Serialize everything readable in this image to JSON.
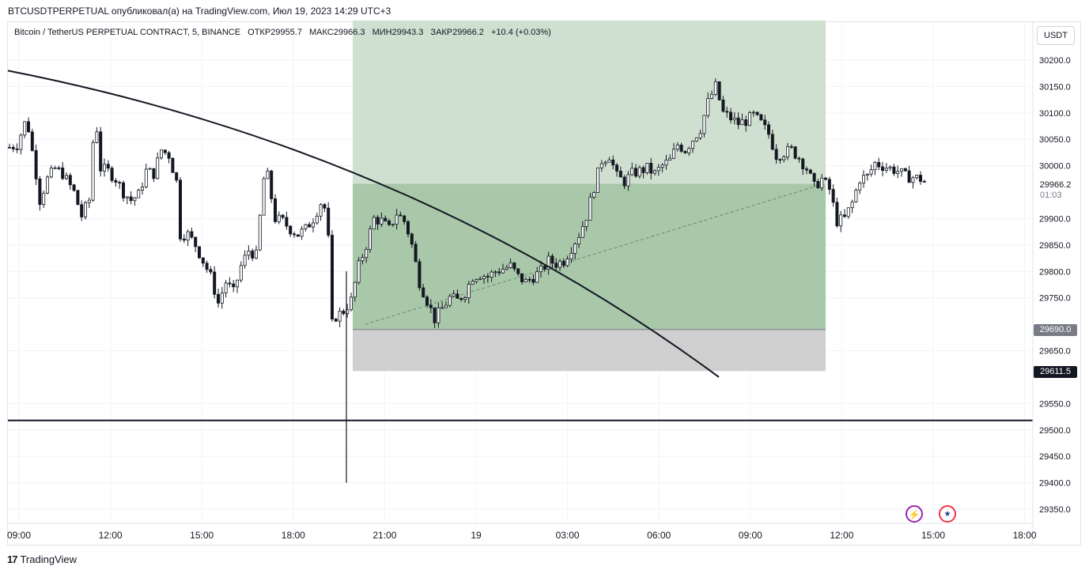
{
  "header": {
    "title": "BTCUSDTPERPETUAL опубликовал(а) на TradingView.com, Июл 19, 2023 14:29 UTC+3"
  },
  "legend": {
    "symbol": "Bitcoin / TetherUS PERPETUAL CONTRACT, 5, BINANCE",
    "open_label": "ОТКР",
    "open": "29955.7",
    "high_label": "МАКС",
    "high": "29966.3",
    "low_label": "МИН",
    "low": "29943.3",
    "close_label": "ЗАКР",
    "close": "29966.2",
    "change": "+10.4 (+0.03%)"
  },
  "currency": "USDT",
  "price_labels": {
    "last": "29966.2",
    "countdown": "01:03",
    "entry": "29690.0",
    "stop": "29611.5"
  },
  "footer": {
    "logo": "TradingView"
  },
  "icons": {
    "bolt": "lightning-icon",
    "flag": "us-flag-icon"
  },
  "colors": {
    "profit_zone": "#a5c8a5",
    "stop_zone": "#c8c8c8",
    "last_price_bg": "#787b86",
    "entry_bg": "#787b86",
    "stop_bg": "#131722",
    "candles": "#131722"
  },
  "chart_data": {
    "type": "candlestick",
    "y_ticks": [
      "30200.0",
      "30150.0",
      "30100.0",
      "30050.0",
      "30000.0",
      "29900.0",
      "29850.0",
      "29800.0",
      "29750.0",
      "29650.0",
      "29550.0",
      "29500.0",
      "29450.0",
      "29400.0",
      "29350.0"
    ],
    "x_ticks": [
      "09:00",
      "12:00",
      "15:00",
      "18:00",
      "21:00",
      "19",
      "03:00",
      "06:00",
      "09:00",
      "12:00",
      "15:00",
      "18:00"
    ],
    "ylim": [
      29330,
      30290
    ],
    "close_path": [
      [
        0,
        30035
      ],
      [
        2,
        30040
      ],
      [
        4,
        30080
      ],
      [
        5,
        30070
      ],
      [
        7,
        29985
      ],
      [
        8,
        29935
      ],
      [
        10,
        29975
      ],
      [
        12,
        29995
      ],
      [
        14,
        29985
      ],
      [
        17,
        29950
      ],
      [
        19,
        29905
      ],
      [
        21,
        29935
      ],
      [
        22,
        30045
      ],
      [
        23,
        30070
      ],
      [
        24,
        29995
      ],
      [
        26,
        29990
      ],
      [
        28,
        29975
      ],
      [
        30,
        29950
      ],
      [
        32,
        29935
      ],
      [
        34,
        29945
      ],
      [
        36,
        29990
      ],
      [
        38,
        29985
      ],
      [
        40,
        30030
      ],
      [
        42,
        30020
      ],
      [
        44,
        29970
      ],
      [
        45,
        29870
      ],
      [
        47,
        29870
      ],
      [
        49,
        29850
      ],
      [
        51,
        29820
      ],
      [
        53,
        29790
      ],
      [
        55,
        29740
      ],
      [
        57,
        29780
      ],
      [
        59,
        29760
      ],
      [
        61,
        29810
      ],
      [
        63,
        29840
      ],
      [
        65,
        29830
      ],
      [
        67,
        29975
      ],
      [
        68,
        29980
      ],
      [
        70,
        29900
      ],
      [
        72,
        29895
      ],
      [
        74,
        29880
      ],
      [
        76,
        29870
      ],
      [
        78,
        29880
      ],
      [
        80,
        29900
      ],
      [
        82,
        29930
      ],
      [
        83,
        29920
      ],
      [
        84,
        29860
      ],
      [
        85,
        29700
      ],
      [
        86,
        29715
      ],
      [
        88,
        29725
      ],
      [
        90,
        29745
      ],
      [
        92,
        29810
      ],
      [
        94,
        29850
      ],
      [
        96,
        29900
      ],
      [
        98,
        29895
      ],
      [
        100,
        29880
      ],
      [
        102,
        29910
      ],
      [
        104,
        29895
      ],
      [
        105,
        29875
      ],
      [
        106,
        29850
      ],
      [
        108,
        29780
      ],
      [
        110,
        29745
      ],
      [
        112,
        29710
      ],
      [
        114,
        29730
      ],
      [
        116,
        29750
      ],
      [
        118,
        29745
      ],
      [
        120,
        29760
      ],
      [
        122,
        29790
      ],
      [
        124,
        29795
      ],
      [
        126,
        29790
      ],
      [
        128,
        29800
      ],
      [
        130,
        29805
      ],
      [
        132,
        29810
      ],
      [
        134,
        29790
      ],
      [
        136,
        29780
      ],
      [
        138,
        29790
      ],
      [
        140,
        29800
      ],
      [
        142,
        29820
      ],
      [
        144,
        29815
      ],
      [
        146,
        29820
      ],
      [
        148,
        29845
      ],
      [
        150,
        29870
      ],
      [
        152,
        29905
      ],
      [
        154,
        29960
      ],
      [
        156,
        30010
      ],
      [
        158,
        30020
      ],
      [
        160,
        29980
      ],
      [
        162,
        29970
      ],
      [
        164,
        29985
      ],
      [
        166,
        29990
      ],
      [
        168,
        29995
      ],
      [
        170,
        29985
      ],
      [
        172,
        30000
      ],
      [
        174,
        30010
      ],
      [
        176,
        30040
      ],
      [
        178,
        30030
      ],
      [
        180,
        30050
      ],
      [
        182,
        30070
      ],
      [
        184,
        30120
      ],
      [
        186,
        30150
      ],
      [
        188,
        30100
      ],
      [
        190,
        30090
      ],
      [
        192,
        30080
      ],
      [
        194,
        30085
      ],
      [
        196,
        30095
      ],
      [
        198,
        30080
      ],
      [
        200,
        30060
      ],
      [
        202,
        30020
      ],
      [
        204,
        30025
      ],
      [
        206,
        30030
      ],
      [
        208,
        30015
      ],
      [
        210,
        29995
      ],
      [
        212,
        29960
      ],
      [
        214,
        29975
      ],
      [
        216,
        29955
      ],
      [
        218,
        29895
      ],
      [
        220,
        29900
      ],
      [
        222,
        29930
      ],
      [
        224,
        29975
      ],
      [
        226,
        29980
      ],
      [
        228,
        30005
      ],
      [
        230,
        30000
      ],
      [
        232,
        29995
      ],
      [
        234,
        29990
      ],
      [
        236,
        29980
      ],
      [
        238,
        29978
      ],
      [
        240,
        29975
      ],
      [
        242,
        29966
      ]
    ],
    "trendline": {
      "from": [
        "08:00",
        30250
      ],
      "to": [
        "07:00",
        29600
      ]
    },
    "horizontal_line": 29518,
    "position": {
      "entry": 29690.0,
      "target": 30275,
      "stop": 29611.5,
      "mid": 29966
    }
  }
}
